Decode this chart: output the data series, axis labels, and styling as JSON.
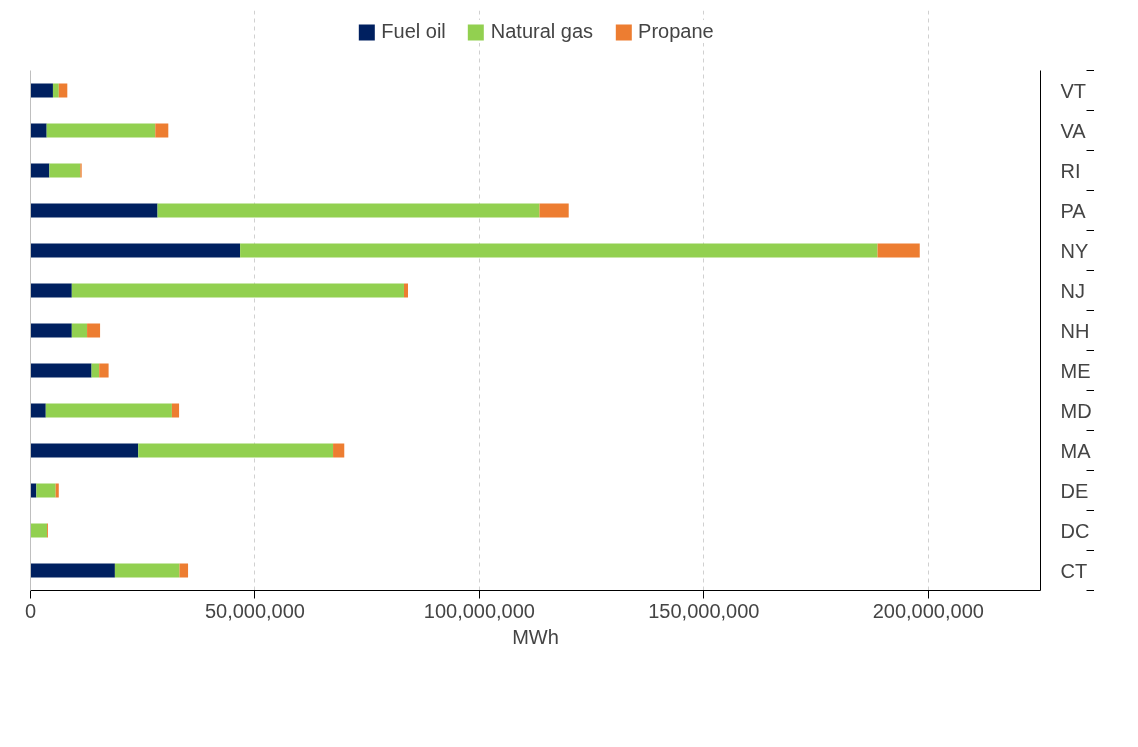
{
  "chart_data": {
    "type": "bar",
    "orientation": "horizontal",
    "stacked": true,
    "xlabel": "MWh",
    "categories": [
      "VT",
      "VA",
      "RI",
      "PA",
      "NY",
      "NJ",
      "NH",
      "ME",
      "MD",
      "MA",
      "DE",
      "DC",
      "CT"
    ],
    "series": [
      {
        "name": "Fuel oil",
        "color": "#002060",
        "values": [
          5000000,
          3600000,
          4200000,
          28300000,
          46700000,
          9200000,
          9200000,
          13600000,
          3400000,
          24000000,
          1300000,
          0,
          18800000
        ]
      },
      {
        "name": "Natural gas",
        "color": "#92d050",
        "values": [
          1300000,
          24200000,
          6900000,
          85100000,
          142000000,
          74000000,
          3400000,
          1700000,
          28100000,
          43400000,
          4300000,
          3700000,
          14400000
        ]
      },
      {
        "name": "Propane",
        "color": "#ed7d31",
        "values": [
          1900000,
          2900000,
          300000,
          6500000,
          9400000,
          900000,
          2900000,
          2100000,
          1600000,
          2500000,
          700000,
          200000,
          1900000
        ]
      }
    ],
    "xlim": [
      0,
      225000000
    ],
    "xticks": [
      {
        "value": 0,
        "label": "0"
      },
      {
        "value": 50000000,
        "label": "50,000,000"
      },
      {
        "value": 100000000,
        "label": "100,000,000"
      },
      {
        "value": 150000000,
        "label": "150,000,000"
      },
      {
        "value": 200000000,
        "label": "200,000,000"
      }
    ],
    "grid": "x",
    "legend": "top"
  }
}
